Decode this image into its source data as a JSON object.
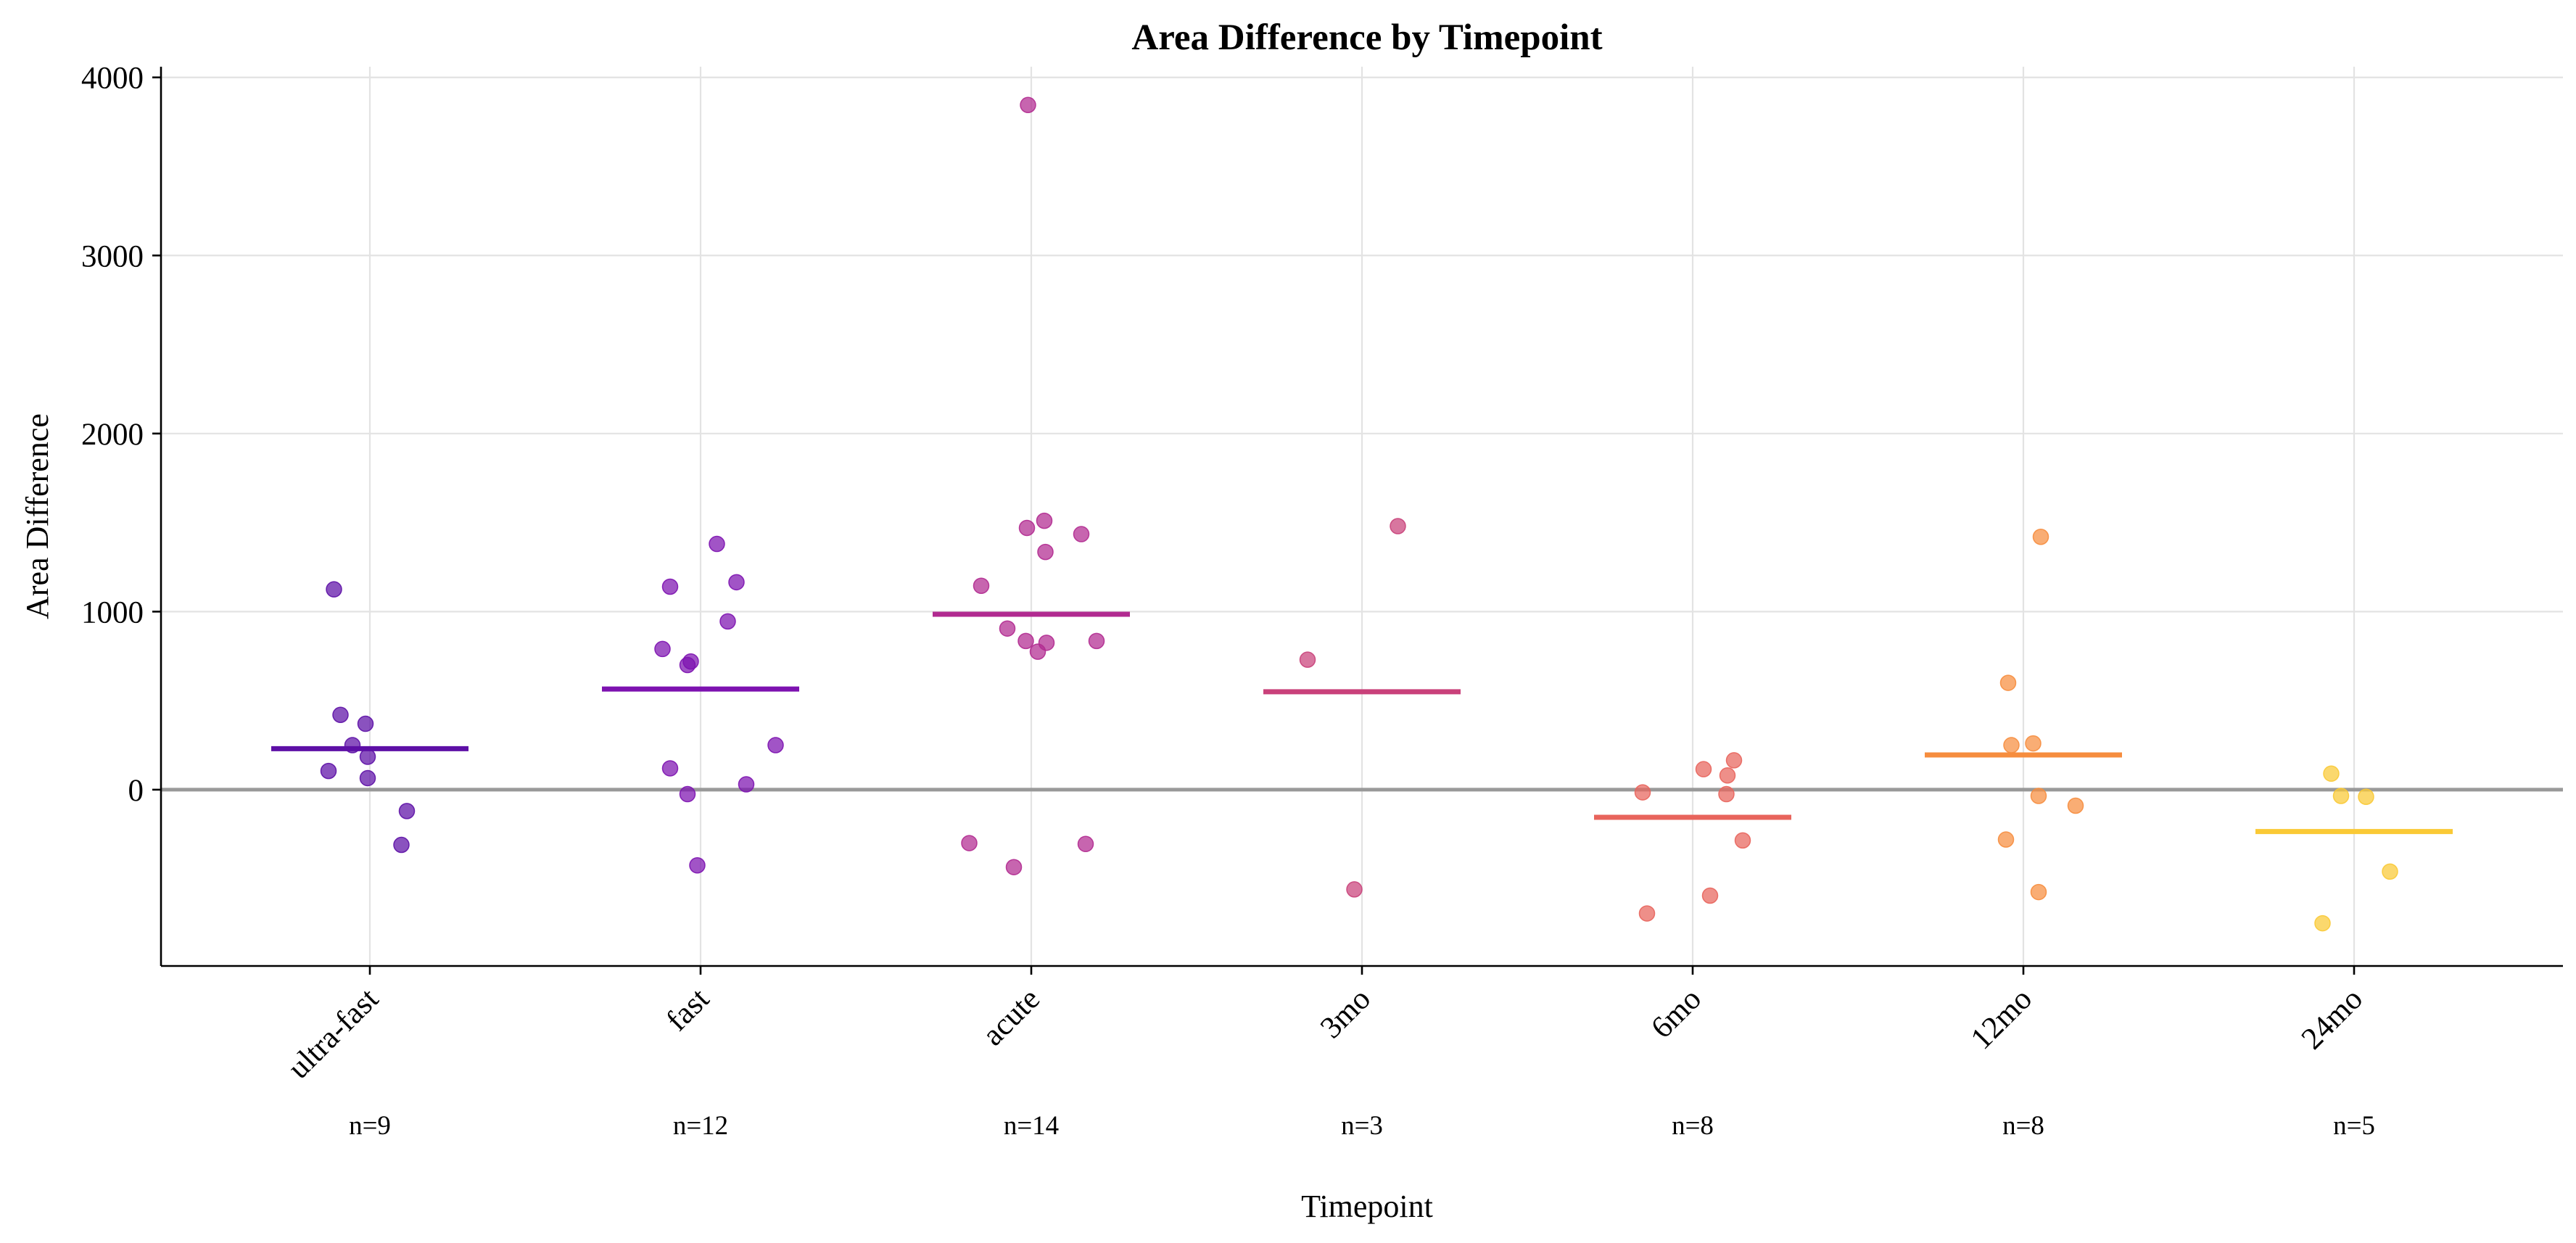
{
  "chart_data": {
    "type": "scatter",
    "title": "Area Difference by Timepoint",
    "xlabel": "Timepoint",
    "ylabel": "Area Difference",
    "ylim": [
      -990,
      4060
    ],
    "yticks": [
      0,
      1000,
      2000,
      3000,
      4000
    ],
    "grid": true,
    "reference_line_y": 0,
    "categories": [
      "ultra-fast",
      "fast",
      "acute",
      "3mo",
      "6mo",
      "12mo",
      "24mo"
    ],
    "counts": [
      "n=9",
      "n=12",
      "n=14",
      "n=3",
      "n=8",
      "n=8",
      "n=5"
    ],
    "colors": [
      "#5d0fa6",
      "#7d12b0",
      "#b12a90",
      "#c9417a",
      "#e8645c",
      "#f68d3e",
      "#fac935"
    ],
    "means": [
      230,
      565,
      985,
      550,
      -155,
      195,
      -235
    ],
    "groups": [
      [
        1125,
        420,
        370,
        250,
        185,
        105,
        65,
        -120,
        -310
      ],
      [
        1140,
        1380,
        1165,
        945,
        790,
        720,
        700,
        250,
        120,
        30,
        -25,
        -425
      ],
      [
        3845,
        1510,
        1470,
        1435,
        1335,
        1145,
        905,
        835,
        825,
        775,
        -300,
        -305,
        -435,
        835
      ],
      [
        1480,
        730,
        -560
      ],
      [
        165,
        115,
        80,
        -15,
        -25,
        -285,
        -595,
        -695
      ],
      [
        1420,
        600,
        260,
        250,
        -35,
        -90,
        -280,
        -575
      ],
      [
        90,
        -35,
        -40,
        -460,
        -750
      ]
    ],
    "x_offsets": [
      [
        -0.33,
        -0.27,
        -0.04,
        -0.16,
        -0.02,
        -0.38,
        -0.02,
        0.34,
        0.29
      ],
      [
        -0.28,
        0.15,
        0.33,
        0.25,
        -0.35,
        -0.09,
        -0.12,
        0.69,
        -0.28,
        0.42,
        -0.12,
        -0.03
      ],
      [
        -0.03,
        0.12,
        -0.04,
        0.46,
        0.13,
        -0.46,
        -0.22,
        -0.05,
        0.14,
        0.06,
        -0.57,
        0.5,
        -0.16,
        0.6
      ],
      [
        0.33,
        -0.5,
        -0.07
      ],
      [
        0.38,
        0.1,
        0.32,
        -0.46,
        0.31,
        0.46,
        0.16,
        -0.42
      ],
      [
        0.16,
        -0.14,
        0.09,
        -0.11,
        0.14,
        0.48,
        -0.16,
        0.14
      ],
      [
        -0.21,
        -0.12,
        0.11,
        0.33,
        -0.29
      ]
    ]
  }
}
